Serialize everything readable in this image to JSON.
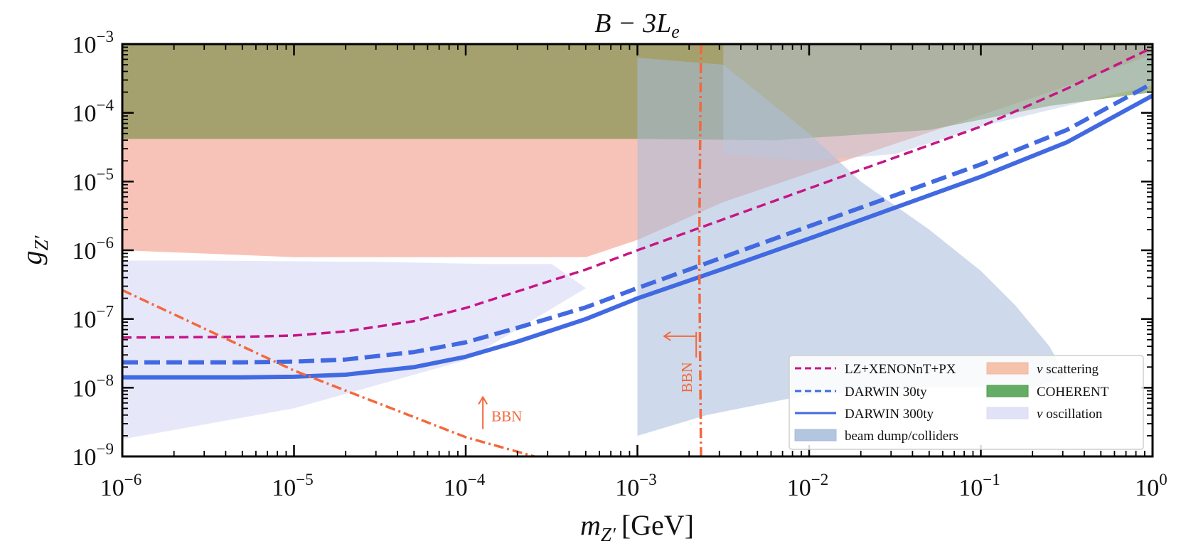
{
  "chart_data": {
    "type": "area",
    "title": "B − 3L",
    "title_sub": "e",
    "xlabel_main": "m",
    "xlabel_sub": "Z′",
    "xlabel_unit": "[GeV]",
    "ylabel_main": "g",
    "ylabel_sub": "Z′",
    "x_scale": "log",
    "y_scale": "log",
    "xlim_log10": [
      -6,
      0
    ],
    "ylim_log10": [
      -9,
      -3
    ],
    "x_ticks": [
      {
        "base": "10",
        "exp": "−6"
      },
      {
        "base": "10",
        "exp": "−5"
      },
      {
        "base": "10",
        "exp": "−4"
      },
      {
        "base": "10",
        "exp": "−3"
      },
      {
        "base": "10",
        "exp": "−2"
      },
      {
        "base": "10",
        "exp": "−1"
      },
      {
        "base": "10",
        "exp": "0"
      }
    ],
    "y_ticks": [
      {
        "base": "10",
        "exp": "−9"
      },
      {
        "base": "10",
        "exp": "−8"
      },
      {
        "base": "10",
        "exp": "−7"
      },
      {
        "base": "10",
        "exp": "−6"
      },
      {
        "base": "10",
        "exp": "−5"
      },
      {
        "base": "10",
        "exp": "−4"
      },
      {
        "base": "10",
        "exp": "−3"
      }
    ],
    "lines": [
      {
        "name": "LZ+XENONnT+PX",
        "color": "#c71585",
        "style": "dashed",
        "width": "thin",
        "points_log10": [
          [
            -6,
            -7.27
          ],
          [
            -5.3,
            -7.26
          ],
          [
            -5,
            -7.24
          ],
          [
            -4.7,
            -7.18
          ],
          [
            -4.3,
            -7.03
          ],
          [
            -4,
            -6.84
          ],
          [
            -3.7,
            -6.6
          ],
          [
            -3.3,
            -6.28
          ],
          [
            -3,
            -6.0
          ],
          [
            -2.5,
            -5.55
          ],
          [
            -2,
            -5.1
          ],
          [
            -1.5,
            -4.65
          ],
          [
            -1,
            -4.2
          ],
          [
            -0.5,
            -3.65
          ],
          [
            0,
            -3.05
          ]
        ]
      },
      {
        "name": "DARWIN 30ty",
        "color": "#4169e1",
        "style": "dashed",
        "width": "thick",
        "points_log10": [
          [
            -6,
            -7.63
          ],
          [
            -5.3,
            -7.63
          ],
          [
            -5,
            -7.62
          ],
          [
            -4.7,
            -7.59
          ],
          [
            -4.3,
            -7.48
          ],
          [
            -4,
            -7.34
          ],
          [
            -3.7,
            -7.13
          ],
          [
            -3.3,
            -6.83
          ],
          [
            -3,
            -6.55
          ],
          [
            -2.5,
            -6.1
          ],
          [
            -2,
            -5.65
          ],
          [
            -1.5,
            -5.2
          ],
          [
            -1,
            -4.75
          ],
          [
            -0.5,
            -4.25
          ],
          [
            0,
            -3.57
          ]
        ]
      },
      {
        "name": "DARWIN 300ty",
        "color": "#4169e1",
        "style": "solid",
        "width": "thick",
        "points_log10": [
          [
            -6,
            -7.85
          ],
          [
            -5.3,
            -7.85
          ],
          [
            -5,
            -7.84
          ],
          [
            -4.7,
            -7.81
          ],
          [
            -4.3,
            -7.7
          ],
          [
            -4,
            -7.55
          ],
          [
            -3.7,
            -7.33
          ],
          [
            -3.3,
            -7.0
          ],
          [
            -3,
            -6.7
          ],
          [
            -2.5,
            -6.27
          ],
          [
            -2,
            -5.83
          ],
          [
            -1.5,
            -5.38
          ],
          [
            -1,
            -4.93
          ],
          [
            -0.5,
            -4.43
          ],
          [
            0,
            -3.75
          ]
        ]
      },
      {
        "name": "BBN",
        "color": "#f4683c",
        "style": "dashdot",
        "width": "thin",
        "points_log10": [
          [
            -6,
            -6.58
          ],
          [
            -5,
            -7.75
          ],
          [
            -4,
            -8.72
          ],
          [
            -3.6,
            -9.0
          ]
        ]
      },
      {
        "name": "BBN",
        "color": "#f4683c",
        "style": "dashdot",
        "width": "thin",
        "points_log10": [
          [
            -2.63,
            -3.0
          ],
          [
            -2.64,
            -6.0
          ],
          [
            -2.63,
            -9.0
          ]
        ]
      }
    ],
    "regions": [
      {
        "name": "ν scattering",
        "color": "#f0927e",
        "opacity": 0.55,
        "points_log10": [
          [
            -6,
            -3
          ],
          [
            0,
            -3
          ],
          [
            0,
            -3.15
          ],
          [
            -0.6,
            -3.7
          ],
          [
            -1.5,
            -4.45
          ],
          [
            -2.5,
            -5.3
          ],
          [
            -3,
            -5.85
          ],
          [
            -3.3,
            -6.1
          ],
          [
            -4,
            -6.1
          ],
          [
            -5,
            -6.1
          ],
          [
            -6,
            -6.0
          ]
        ]
      },
      {
        "name": "COHERENT",
        "color": "#6e8b3d",
        "opacity": 0.6,
        "points_log10": [
          [
            -6,
            -3
          ],
          [
            0,
            -3
          ],
          [
            0,
            -3.7
          ],
          [
            -0.6,
            -3.9
          ],
          [
            -1.3,
            -4.25
          ],
          [
            -2.2,
            -4.4
          ],
          [
            -3,
            -4.38
          ],
          [
            -6,
            -4.38
          ]
        ]
      },
      {
        "name": "ν oscillation",
        "color": "#d7d7f6",
        "opacity": 0.6,
        "points_log10": [
          [
            -6,
            -6.15
          ],
          [
            -5.5,
            -6.15
          ],
          [
            -4.5,
            -6.17
          ],
          [
            -3.9,
            -6.2
          ],
          [
            -3.5,
            -6.2
          ],
          [
            -3.3,
            -6.55
          ],
          [
            -4,
            -7.6
          ],
          [
            -5,
            -8.3
          ],
          [
            -6,
            -8.75
          ]
        ]
      },
      {
        "name": "beam dump/colliders",
        "color": "#a6bcda",
        "opacity": 0.55,
        "points_log10": [
          [
            -3,
            -3.2
          ],
          [
            -2.5,
            -3.3
          ],
          [
            -2,
            -4.3
          ],
          [
            -1.7,
            -5.0
          ],
          [
            -1.3,
            -5.7
          ],
          [
            -1,
            -6.3
          ],
          [
            -0.8,
            -6.8
          ],
          [
            -0.6,
            -7.4
          ],
          [
            -0.5,
            -7.85
          ],
          [
            -0.7,
            -8.0
          ],
          [
            -1.3,
            -8.0
          ],
          [
            -2,
            -8.1
          ],
          [
            -2.6,
            -8.4
          ],
          [
            -3,
            -8.7
          ],
          [
            -3.0,
            -7.5
          ],
          [
            -3.0,
            -6.0
          ]
        ]
      },
      {
        "name": "beam dump/colliders",
        "color": "#b7c7e0",
        "opacity": 0.45,
        "points_log10": [
          [
            -2.5,
            -3.0
          ],
          [
            0,
            -3.0
          ],
          [
            0,
            -3.6
          ],
          [
            -0.5,
            -3.9
          ],
          [
            -1,
            -4.2
          ],
          [
            -1.5,
            -4.6
          ],
          [
            -2,
            -4.7
          ],
          [
            -2.5,
            -4.6
          ]
        ]
      }
    ],
    "annotations": [
      {
        "text": "BBN",
        "x_log10": -3.9,
        "y_log10": -8.55,
        "arrow": "up",
        "color": "#f4683c"
      },
      {
        "text": "BBN",
        "x_log10": -2.84,
        "y_log10": -7.25,
        "arrow": "left",
        "color": "#f4683c",
        "rotated": true
      }
    ],
    "legend_position": "lower-right",
    "legend": [
      {
        "label": "LZ+XENONnT+PX",
        "kind": "line",
        "color": "#c71585",
        "style": "dashed"
      },
      {
        "label": "DARWIN 30ty",
        "kind": "line",
        "color": "#4169e1",
        "style": "dashed"
      },
      {
        "label": "DARWIN 300ty",
        "kind": "line",
        "color": "#4169e1",
        "style": "solid"
      },
      {
        "label": "beam dump/colliders",
        "kind": "patch",
        "color": "#a6bcda"
      },
      {
        "label_greek": "ν",
        "label": " scattering",
        "kind": "patch",
        "color": "#f4b79e"
      },
      {
        "label": "COHERENT",
        "kind": "patch",
        "color": "#4a9e4a"
      },
      {
        "label_greek": "ν",
        "label": " oscillation",
        "kind": "patch",
        "color": "#dcdcf6"
      }
    ]
  }
}
